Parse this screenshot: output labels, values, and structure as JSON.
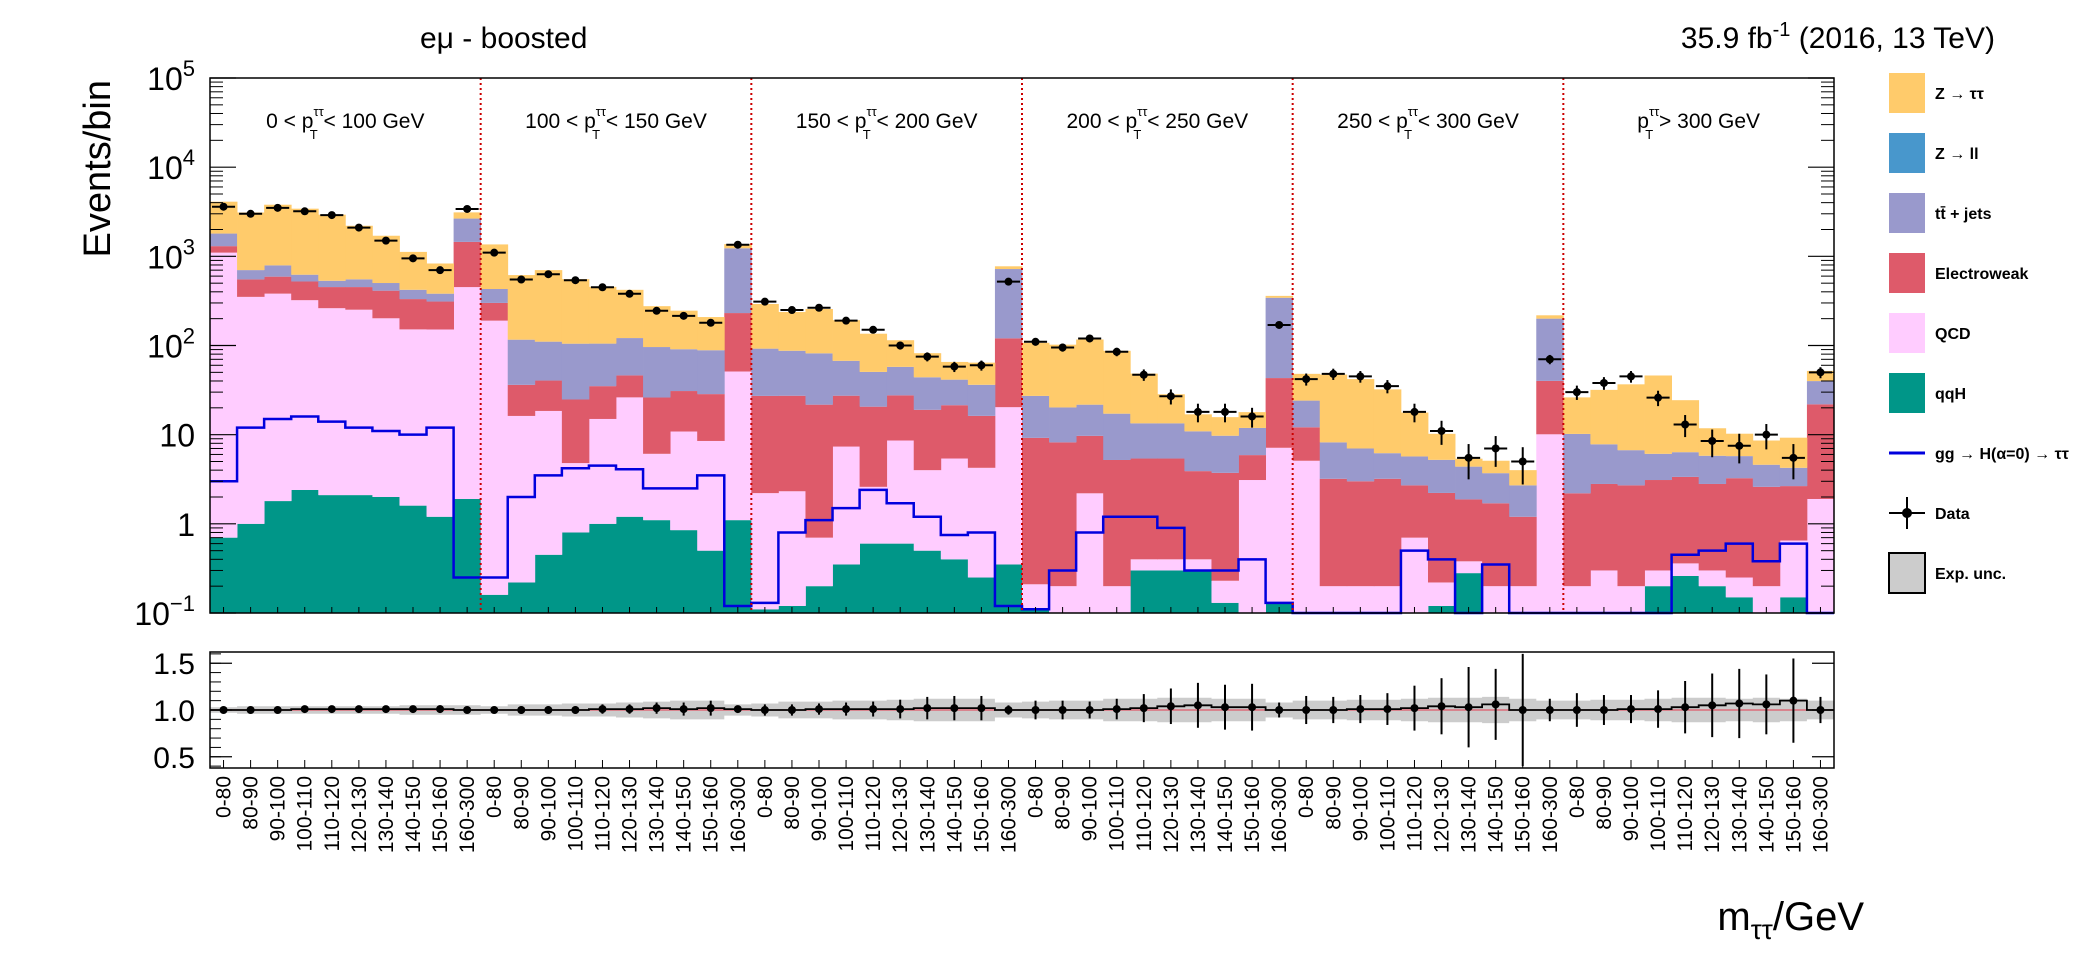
{
  "header": {
    "channel": "eμ - boosted",
    "lumi_value": "35.9 fb",
    "lumi_exp": "-1",
    "lumi_rest": " (2016, 13 TeV)"
  },
  "chart_data": {
    "type": "bar",
    "stacked": true,
    "ylabel": "Events/bin",
    "yscale": "log",
    "ylim": [
      0.1,
      100000
    ],
    "y_ticks": [
      "10^-1",
      "1",
      "10",
      "10^2",
      "10^3",
      "10^4",
      "10^5"
    ],
    "xlabel": "m_ττ/GeV",
    "ratio_panel": {
      "ylim": [
        0.38,
        1.62
      ],
      "ticks": [
        "0.5",
        "1.0",
        "1.5"
      ]
    },
    "categories": [
      "0-80",
      "80-90",
      "90-100",
      "100-110",
      "110-120",
      "120-130",
      "130-140",
      "140-150",
      "150-160",
      "160-300",
      "0-80",
      "80-90",
      "90-100",
      "100-110",
      "110-120",
      "120-130",
      "130-140",
      "140-150",
      "150-160",
      "160-300",
      "0-80",
      "80-90",
      "90-100",
      "100-110",
      "110-120",
      "120-130",
      "130-140",
      "140-150",
      "150-160",
      "160-300",
      "0-80",
      "80-90",
      "90-100",
      "100-110",
      "110-120",
      "120-130",
      "130-140",
      "140-150",
      "150-160",
      "160-300",
      "0-80",
      "80-90",
      "90-100",
      "100-110",
      "110-120",
      "120-130",
      "130-140",
      "140-150",
      "150-160",
      "160-300",
      "0-80",
      "80-90",
      "90-100",
      "100-110",
      "110-120",
      "120-130",
      "130-140",
      "140-150",
      "150-160",
      "160-300"
    ],
    "region_labels": [
      {
        "left": "0 < p",
        "right": " < 100 GeV"
      },
      {
        "left": "100 < p",
        "right": " < 150 GeV"
      },
      {
        "left": "150 < p",
        "right": " < 200 GeV"
      },
      {
        "left": "200 < p",
        "right": " < 250 GeV"
      },
      {
        "left": "250 < p",
        "right": " < 300 GeV"
      },
      {
        "left": "p",
        "right": " > 300 GeV"
      }
    ],
    "series": [
      {
        "name": "qqH",
        "color": "#009688",
        "values": [
          0.7,
          1.0,
          1.8,
          2.4,
          2.1,
          2.1,
          2.0,
          1.6,
          1.2,
          1.9,
          0.16,
          0.22,
          0.45,
          0.8,
          1.0,
          1.2,
          1.1,
          0.85,
          0.5,
          1.1,
          0.11,
          0.12,
          0.2,
          0.35,
          0.6,
          0.6,
          0.5,
          0.4,
          0.25,
          0.35,
          0.11,
          0.1,
          0.1,
          0.1,
          0.3,
          0.3,
          0.3,
          0.13,
          0.1,
          0.13,
          0.1,
          0.1,
          0.1,
          0.1,
          0.1,
          0.12,
          0.28,
          0.1,
          0.1,
          0.1,
          0.1,
          0.1,
          0.1,
          0.2,
          0.26,
          0.2,
          0.15,
          0.1,
          0.15,
          0.1
        ]
      },
      {
        "name": "QCD",
        "color": "#ffccff",
        "values": [
          1100,
          350,
          380,
          320,
          260,
          250,
          200,
          150,
          150,
          450,
          190,
          16,
          18,
          4,
          14,
          25,
          5,
          10,
          8,
          50,
          2.1,
          2.2,
          0.5,
          7,
          2,
          8,
          3.5,
          5,
          4,
          20,
          0.1,
          0.1,
          2.1,
          0.1,
          0.1,
          0.1,
          0.1,
          0.1,
          3,
          7,
          5,
          0.1,
          0.1,
          0.1,
          0.6,
          0.1,
          0.1,
          0.1,
          0.1,
          10,
          0.1,
          0.2,
          0.1,
          0.1,
          0.1,
          0.1,
          0.1,
          0.1,
          0.5,
          1.8
        ]
      },
      {
        "name": "Electroweak",
        "color": "#de5a6a",
        "values": [
          200,
          200,
          210,
          200,
          190,
          200,
          210,
          180,
          160,
          1000,
          110,
          20,
          22,
          20,
          20,
          20,
          20,
          20,
          20,
          180,
          25,
          25,
          21,
          20,
          18,
          19,
          15,
          16,
          12,
          100,
          9,
          8,
          7.5,
          5,
          5,
          5,
          3.5,
          3.5,
          2.8,
          36,
          7,
          3,
          2.8,
          3,
          2,
          2,
          1.5,
          1.5,
          1,
          30,
          2,
          2.5,
          2.5,
          2.8,
          3,
          2.5,
          3,
          2.4,
          2,
          20
        ]
      },
      {
        "name": "tt̄ + jets",
        "color": "#9999cc",
        "values": [
          500,
          150,
          200,
          100,
          80,
          100,
          90,
          90,
          70,
          1200,
          130,
          80,
          70,
          80,
          70,
          75,
          70,
          60,
          60,
          1000,
          65,
          60,
          60,
          40,
          30,
          30,
          25,
          20,
          20,
          600,
          18,
          12,
          12,
          12,
          8,
          8,
          7,
          6,
          6,
          300,
          12,
          5,
          4,
          3,
          3,
          3,
          2.5,
          2,
          1.5,
          160,
          8,
          5,
          4,
          3,
          3,
          3,
          2.5,
          2,
          1.6,
          18
        ]
      },
      {
        "name": "Z → ll",
        "color": "#4897cc",
        "values": [
          0,
          0,
          0,
          0,
          0,
          0,
          0,
          0,
          0,
          0,
          0,
          0,
          0,
          0,
          0,
          0,
          0,
          0,
          0,
          0,
          0,
          0,
          0,
          0,
          0,
          0,
          0,
          0,
          0,
          0,
          0,
          0,
          0,
          0,
          0,
          0,
          0,
          0,
          0,
          0,
          0,
          0,
          0,
          0,
          0,
          0,
          0,
          0,
          0,
          0,
          0,
          0,
          0,
          0,
          0,
          0,
          0,
          0,
          0,
          0
        ]
      },
      {
        "name": "Z → ττ",
        "color": "#ffcb6b",
        "values": [
          2300,
          2400,
          3000,
          2800,
          2400,
          1650,
          1200,
          700,
          450,
          460,
          930,
          500,
          590,
          450,
          350,
          300,
          180,
          155,
          120,
          140,
          200,
          150,
          175,
          125,
          85,
          57,
          38,
          24,
          28,
          53,
          80,
          82,
          95,
          70,
          35,
          15,
          6,
          6,
          6,
          17,
          24,
          39,
          35,
          26,
          12,
          5,
          1,
          1.4,
          1.3,
          18,
          16,
          24,
          30,
          40,
          18,
          6,
          4.5,
          4,
          5,
          12
        ]
      },
      {
        "name": "gg → H(α=0) → ττ",
        "color": "#0000dd",
        "values": [
          3,
          12,
          15,
          16,
          14,
          12,
          11,
          10,
          12,
          0.25,
          0.25,
          2,
          3.5,
          4.2,
          4.5,
          4.1,
          2.5,
          2.5,
          3.5,
          0.12,
          0.13,
          0.8,
          1.1,
          1.5,
          2.4,
          1.7,
          1.2,
          0.75,
          0.8,
          0.12,
          0.11,
          0.3,
          0.8,
          1.2,
          1.2,
          0.9,
          0.3,
          0.3,
          0.4,
          0.13,
          0.1,
          0.1,
          0.1,
          0.1,
          0.5,
          0.4,
          0.1,
          0.35,
          0.1,
          0.1,
          0.1,
          0.1,
          0.1,
          0.1,
          0.45,
          0.5,
          0.6,
          0.38,
          0.6,
          0.1
        ]
      }
    ],
    "data": {
      "name": "Data",
      "values": [
        3600,
        3000,
        3500,
        3200,
        2900,
        2100,
        1500,
        950,
        700,
        3400,
        1100,
        550,
        630,
        540,
        450,
        380,
        245,
        215,
        180,
        1350,
        310,
        250,
        265,
        190,
        150,
        100,
        75,
        58,
        60,
        520,
        110,
        95,
        120,
        85,
        47,
        27,
        18,
        18,
        16,
        170,
        42,
        48,
        45,
        35,
        18,
        11,
        5.5,
        7,
        5,
        70,
        30,
        38,
        45,
        26,
        13,
        8.5,
        7.5,
        10,
        5.5,
        50
      ],
      "ratio": [
        1.0,
        1.0,
        1.0,
        1.01,
        1.01,
        1.01,
        1.01,
        1.01,
        1.01,
        1.0,
        1.0,
        1.0,
        1.0,
        1.0,
        1.01,
        1.01,
        1.02,
        1.01,
        1.02,
        1.01,
        1.0,
        1.0,
        1.01,
        1.01,
        1.01,
        1.01,
        1.02,
        1.02,
        1.02,
        1.0,
        1.0,
        1.0,
        1.0,
        1.01,
        1.02,
        1.04,
        1.05,
        1.03,
        1.03,
        1.0,
        1.0,
        1.0,
        1.01,
        1.01,
        1.02,
        1.04,
        1.03,
        1.06,
        1.0,
        1.0,
        1.0,
        1.0,
        1.01,
        1.01,
        1.03,
        1.05,
        1.07,
        1.06,
        1.1,
        1.0
      ],
      "ratio_err": [
        0.02,
        0.02,
        0.02,
        0.02,
        0.02,
        0.02,
        0.03,
        0.03,
        0.04,
        0.02,
        0.03,
        0.04,
        0.04,
        0.04,
        0.05,
        0.05,
        0.06,
        0.07,
        0.08,
        0.03,
        0.06,
        0.06,
        0.06,
        0.07,
        0.08,
        0.1,
        0.12,
        0.13,
        0.13,
        0.05,
        0.1,
        0.1,
        0.09,
        0.11,
        0.15,
        0.19,
        0.24,
        0.24,
        0.25,
        0.08,
        0.15,
        0.14,
        0.15,
        0.17,
        0.24,
        0.3,
        0.43,
        0.38,
        0.6,
        0.12,
        0.18,
        0.16,
        0.15,
        0.2,
        0.28,
        0.34,
        0.37,
        0.32,
        0.45,
        0.14
      ],
      "band_err": [
        0.03,
        0.04,
        0.04,
        0.04,
        0.04,
        0.04,
        0.04,
        0.05,
        0.05,
        0.05,
        0.04,
        0.06,
        0.06,
        0.07,
        0.07,
        0.08,
        0.09,
        0.1,
        0.1,
        0.06,
        0.07,
        0.09,
        0.09,
        0.1,
        0.1,
        0.11,
        0.12,
        0.12,
        0.12,
        0.08,
        0.09,
        0.1,
        0.1,
        0.12,
        0.12,
        0.13,
        0.13,
        0.12,
        0.12,
        0.08,
        0.1,
        0.1,
        0.11,
        0.11,
        0.12,
        0.13,
        0.13,
        0.14,
        0.12,
        0.1,
        0.1,
        0.11,
        0.11,
        0.12,
        0.13,
        0.13,
        0.12,
        0.13,
        0.12,
        0.1
      ]
    },
    "legend": {
      "placement": "right",
      "entries": [
        {
          "label": "Z → ττ",
          "kind": "box",
          "color": "#ffcb6b"
        },
        {
          "label": "Z → ll",
          "kind": "box",
          "color": "#4897cc"
        },
        {
          "label": "tt̄ + jets",
          "kind": "box",
          "color": "#9999cc"
        },
        {
          "label": "Electroweak",
          "kind": "box",
          "color": "#de5a6a"
        },
        {
          "label": "QCD",
          "kind": "box",
          "color": "#ffccff"
        },
        {
          "label": "qqH",
          "kind": "box",
          "color": "#009688"
        },
        {
          "label": "gg → H(α=0) → ττ",
          "kind": "line",
          "color": "#0000dd"
        },
        {
          "label": "Data",
          "kind": "marker",
          "color": "#000000"
        },
        {
          "label": "Exp. unc.",
          "kind": "band",
          "color": "#cccccc"
        }
      ]
    }
  }
}
